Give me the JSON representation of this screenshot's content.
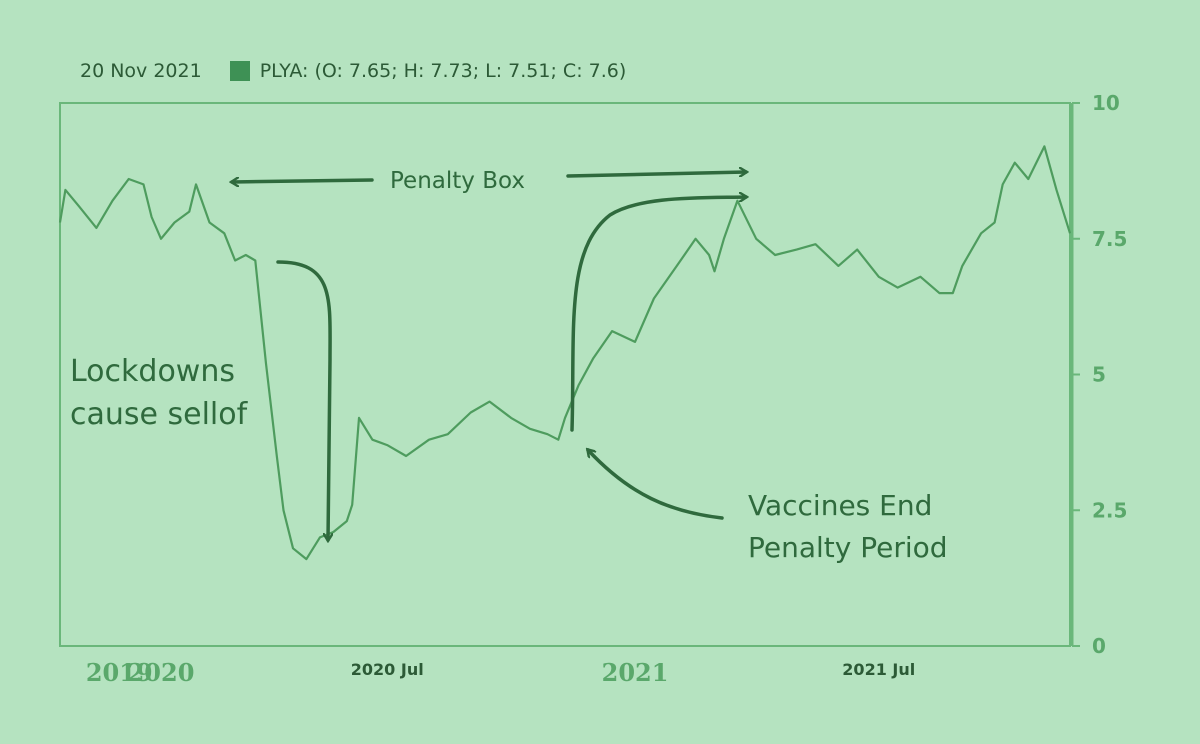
{
  "legend": {
    "date": "20 Nov 2021",
    "ticker": "PLYA",
    "ohlc_text": "PLYA: (O: 7.65; H: 7.73; L: 7.51; C: 7.6)"
  },
  "annotations": {
    "penalty_box": "Penalty Box",
    "lockdowns_line1": "Lockdowns",
    "lockdowns_line2": "cause sellof",
    "vaccines_line1": "Vaccines End",
    "vaccines_line2": "Penalty Period"
  },
  "colors": {
    "background": "#b5e3c0",
    "line": "#4e9c5e",
    "axis": "#6ab77a",
    "annotation": "#2f6a3d"
  },
  "chart_data": {
    "type": "line",
    "title": "",
    "xlabel": "",
    "ylabel": "",
    "ylim": [
      0,
      10
    ],
    "y_axis_position": "right",
    "legend_position": "top-left",
    "grid": false,
    "xlim": [
      "2019-11-01",
      "2021-11-20"
    ],
    "y_ticks": [
      0,
      2.5,
      5,
      7.5,
      10
    ],
    "y_tick_labels": [
      "0",
      "2.5",
      "5",
      "7.5",
      "10"
    ],
    "x_ticks": [
      {
        "date": "2019-12-15",
        "label": "2019",
        "major": true
      },
      {
        "date": "2020-01-15",
        "label": "2020",
        "major": true
      },
      {
        "date": "2020-07-01",
        "label": "2020 Jul",
        "major": false
      },
      {
        "date": "2021-01-01",
        "label": "2021",
        "major": true
      },
      {
        "date": "2021-07-01",
        "label": "2021 Jul",
        "major": false
      }
    ],
    "series": [
      {
        "x": [
          "2019-11-01",
          "2019-11-05",
          "2019-11-15",
          "2019-11-28",
          "2019-12-10",
          "2019-12-22",
          "2020-01-02",
          "2020-01-08",
          "2020-01-15",
          "2020-01-25",
          "2020-02-05",
          "2020-02-10",
          "2020-02-20",
          "2020-03-02",
          "2020-03-10",
          "2020-03-18",
          "2020-03-25",
          "2020-04-02",
          "2020-04-10",
          "2020-04-15",
          "2020-04-22",
          "2020-05-02",
          "2020-05-12",
          "2020-05-22",
          "2020-06-01",
          "2020-06-05",
          "2020-06-10",
          "2020-06-20",
          "2020-07-01",
          "2020-07-15",
          "2020-08-01",
          "2020-08-15",
          "2020-09-01",
          "2020-09-15",
          "2020-10-01",
          "2020-10-15",
          "2020-10-28",
          "2020-11-05",
          "2020-11-10",
          "2020-11-20",
          "2020-12-01",
          "2020-12-15",
          "2021-01-01",
          "2021-01-15",
          "2021-02-01",
          "2021-02-15",
          "2021-02-25",
          "2021-03-01",
          "2021-03-08",
          "2021-03-18",
          "2021-04-01",
          "2021-04-15",
          "2021-05-01",
          "2021-05-15",
          "2021-06-01",
          "2021-06-15",
          "2021-07-01",
          "2021-07-15",
          "2021-08-01",
          "2021-08-15",
          "2021-08-25",
          "2021-09-01",
          "2021-09-15",
          "2021-09-25",
          "2021-10-01",
          "2021-10-10",
          "2021-10-20",
          "2021-11-01",
          "2021-11-10",
          "2021-11-20"
        ],
        "y": [
          7.8,
          8.4,
          8.1,
          7.7,
          8.2,
          8.6,
          8.5,
          7.9,
          7.5,
          7.8,
          8.0,
          8.5,
          7.8,
          7.6,
          7.1,
          7.2,
          7.1,
          5.2,
          3.5,
          2.5,
          1.8,
          1.6,
          2.0,
          2.1,
          2.3,
          2.6,
          4.2,
          3.8,
          3.7,
          3.5,
          3.8,
          3.9,
          4.3,
          4.5,
          4.2,
          4.0,
          3.9,
          3.8,
          4.2,
          4.8,
          5.3,
          5.8,
          5.6,
          6.4,
          7.0,
          7.5,
          7.2,
          6.9,
          7.5,
          8.2,
          7.5,
          7.2,
          7.3,
          7.4,
          7.0,
          7.3,
          6.8,
          6.6,
          6.8,
          6.5,
          6.5,
          7.0,
          7.6,
          7.8,
          8.5,
          8.9,
          8.6,
          9.2,
          8.4,
          7.6
        ]
      }
    ]
  }
}
